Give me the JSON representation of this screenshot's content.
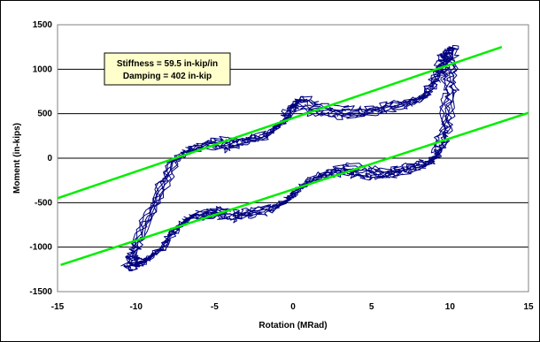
{
  "chart_data": {
    "type": "line",
    "title": "",
    "xlabel": "Rotation (MRad)",
    "ylabel": "Moment (in-kips)",
    "xlim": [
      -15,
      15
    ],
    "ylim": [
      -1500,
      1500
    ],
    "x_ticks": [
      "-15",
      "-10",
      "-5",
      "0",
      "5",
      "10",
      "15"
    ],
    "y_ticks": [
      "1500",
      "1000",
      "500",
      "0",
      "-500",
      "-1000",
      "-1500"
    ],
    "grid": "horizontal",
    "legend": "none",
    "annotation": {
      "lines": [
        "Stiffness = 59.5 in-kip/in",
        "Damping = 402 in-kip"
      ],
      "fill": "#ffffcc"
    },
    "colors": {
      "hysteresis": "#000080",
      "fit_lines": "#00ee00",
      "grid": "#000000",
      "plot_border": "#808080"
    },
    "series": [
      {
        "kind": "hysteresis",
        "x": [
          -10.3,
          -9.8,
          -8.5,
          -7.5,
          -6.5,
          -5,
          -4,
          -3,
          -1.5,
          -0.5,
          0,
          0.5,
          1.5,
          3,
          4.5,
          6,
          7.5,
          8.5,
          9,
          9.6,
          9.8,
          10,
          10.1,
          10,
          9.7,
          9.4,
          8.8,
          7.5,
          6.5,
          5.5,
          4.5,
          3.5,
          2.5,
          1,
          0,
          -1,
          -2.5,
          -3.5,
          -4.5,
          -5.5,
          -6.5,
          -7.5,
          -8.5,
          -9.5,
          -10,
          -10.3
        ],
        "y": [
          -1150,
          -900,
          -400,
          0,
          100,
          180,
          150,
          200,
          280,
          420,
          600,
          650,
          560,
          520,
          520,
          580,
          620,
          700,
          850,
          1050,
          1200,
          1200,
          1000,
          700,
          300,
          100,
          -50,
          -100,
          -150,
          -180,
          -150,
          -120,
          -150,
          -250,
          -400,
          -550,
          -600,
          -640,
          -600,
          -620,
          -650,
          -800,
          -1050,
          -1150,
          -1200,
          -1150
        ]
      },
      {
        "kind": "fit",
        "name": "upper",
        "x": [
          -15,
          13.3
        ],
        "y": [
          -450,
          1250
        ]
      },
      {
        "kind": "fit",
        "name": "lower",
        "x": [
          -14.8,
          15
        ],
        "y": [
          -1200,
          510
        ]
      }
    ]
  }
}
